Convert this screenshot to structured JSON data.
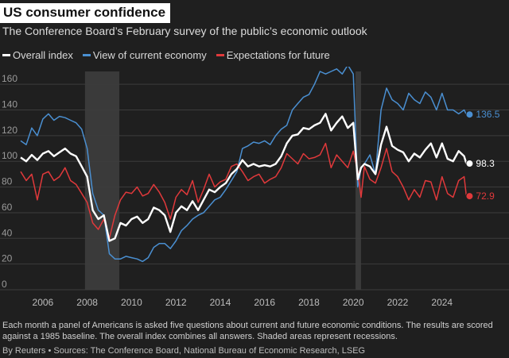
{
  "title": "US consumer confidence",
  "subtitle": "The Conference Board’s February survey of the public’s economic outlook",
  "legend": [
    {
      "label": "Overall index",
      "color": "#ffffff"
    },
    {
      "label": "View of current economy",
      "color": "#4a8fd1"
    },
    {
      "label": "Expectations for future",
      "color": "#e0393b"
    }
  ],
  "footnote": "Each month a panel of Americans is asked five questions about current and future economic conditions. The results are scored against a 1985 baseline. The overall index combines all answers. Shaded areas represent recessions.",
  "source": "By Reuters • Sources: The Conference Board, National Bureau of Economic Research, LSEG",
  "chart_data": {
    "type": "line",
    "title": "US consumer confidence",
    "xlabel": "",
    "ylabel": "",
    "xlim": [
      2005,
      2025.3
    ],
    "ylim": [
      0,
      170
    ],
    "yticks": [
      0,
      20,
      40,
      60,
      80,
      100,
      120,
      140,
      160
    ],
    "xticks": [
      2006,
      2008,
      2010,
      2012,
      2014,
      2016,
      2018,
      2020,
      2022,
      2024
    ],
    "grid": true,
    "legend_position": "top-left",
    "recessions": [
      [
        2007.9,
        2009.45
      ],
      [
        2020.1,
        2020.35
      ]
    ],
    "series": [
      {
        "name": "Overall index",
        "color": "#ffffff",
        "end_label": "98.3",
        "x": [
          2005.0,
          2005.25,
          2005.5,
          2005.75,
          2006.0,
          2006.25,
          2006.5,
          2006.75,
          2007.0,
          2007.25,
          2007.5,
          2007.75,
          2008.0,
          2008.25,
          2008.5,
          2008.75,
          2009.0,
          2009.25,
          2009.5,
          2009.75,
          2010.0,
          2010.25,
          2010.5,
          2010.75,
          2011.0,
          2011.25,
          2011.5,
          2011.75,
          2012.0,
          2012.25,
          2012.5,
          2012.75,
          2013.0,
          2013.25,
          2013.5,
          2013.75,
          2014.0,
          2014.25,
          2014.5,
          2014.75,
          2015.0,
          2015.25,
          2015.5,
          2015.75,
          2016.0,
          2016.25,
          2016.5,
          2016.75,
          2017.0,
          2017.25,
          2017.5,
          2017.75,
          2018.0,
          2018.25,
          2018.5,
          2018.75,
          2019.0,
          2019.25,
          2019.5,
          2019.75,
          2020.0,
          2020.2,
          2020.35,
          2020.5,
          2020.75,
          2021.0,
          2021.25,
          2021.5,
          2021.75,
          2022.0,
          2022.25,
          2022.5,
          2022.75,
          2023.0,
          2023.25,
          2023.5,
          2023.75,
          2024.0,
          2024.25,
          2024.5,
          2024.75,
          2025.0,
          2025.1
        ],
        "y": [
          103,
          100,
          105,
          101,
          106,
          108,
          104,
          107,
          110,
          106,
          104,
          96,
          88,
          62,
          55,
          58,
          38,
          40,
          52,
          50,
          55,
          57,
          52,
          55,
          64,
          62,
          58,
          45,
          60,
          65,
          62,
          69,
          62,
          70,
          78,
          76,
          80,
          83,
          90,
          94,
          101,
          96,
          98,
          96,
          97,
          96,
          98,
          104,
          114,
          120,
          121,
          126,
          125,
          128,
          130,
          137,
          124,
          130,
          135,
          126,
          130,
          86,
          95,
          98,
          96,
          90,
          113,
          127,
          112,
          109,
          107,
          100,
          106,
          103,
          109,
          114,
          103,
          114,
          102,
          100,
          108,
          104,
          98.3
        ]
      },
      {
        "name": "View of current economy",
        "color": "#4a8fd1",
        "end_label": "136.5",
        "x": [
          2005.0,
          2005.25,
          2005.5,
          2005.75,
          2006.0,
          2006.25,
          2006.5,
          2006.75,
          2007.0,
          2007.25,
          2007.5,
          2007.75,
          2008.0,
          2008.25,
          2008.5,
          2008.75,
          2009.0,
          2009.25,
          2009.5,
          2009.75,
          2010.0,
          2010.25,
          2010.5,
          2010.75,
          2011.0,
          2011.25,
          2011.5,
          2011.75,
          2012.0,
          2012.25,
          2012.5,
          2012.75,
          2013.0,
          2013.25,
          2013.5,
          2013.75,
          2014.0,
          2014.25,
          2014.5,
          2014.75,
          2015.0,
          2015.25,
          2015.5,
          2015.75,
          2016.0,
          2016.25,
          2016.5,
          2016.75,
          2017.0,
          2017.25,
          2017.5,
          2017.75,
          2018.0,
          2018.25,
          2018.5,
          2018.75,
          2019.0,
          2019.25,
          2019.5,
          2019.75,
          2020.0,
          2020.2,
          2020.35,
          2020.5,
          2020.75,
          2021.0,
          2021.25,
          2021.5,
          2021.75,
          2022.0,
          2022.25,
          2022.5,
          2022.75,
          2023.0,
          2023.25,
          2023.5,
          2023.75,
          2024.0,
          2024.25,
          2024.5,
          2024.75,
          2025.0,
          2025.1
        ],
        "y": [
          116,
          113,
          126,
          120,
          133,
          137,
          132,
          135,
          134,
          132,
          130,
          125,
          110,
          75,
          62,
          58,
          28,
          24,
          24,
          26,
          25,
          24,
          22,
          25,
          33,
          36,
          36,
          32,
          38,
          46,
          50,
          55,
          58,
          60,
          65,
          70,
          72,
          78,
          85,
          92,
          110,
          112,
          115,
          114,
          116,
          113,
          120,
          125,
          128,
          140,
          145,
          150,
          152,
          160,
          170,
          168,
          170,
          172,
          168,
          175,
          168,
          80,
          95,
          98,
          105,
          90,
          140,
          157,
          148,
          145,
          140,
          153,
          148,
          145,
          154,
          150,
          140,
          153,
          140,
          140,
          137,
          140,
          136.5
        ]
      },
      {
        "name": "Expectations for future",
        "color": "#e0393b",
        "end_label": "72.9",
        "x": [
          2005.0,
          2005.25,
          2005.5,
          2005.75,
          2006.0,
          2006.25,
          2006.5,
          2006.75,
          2007.0,
          2007.25,
          2007.5,
          2007.75,
          2008.0,
          2008.25,
          2008.5,
          2008.75,
          2009.0,
          2009.25,
          2009.5,
          2009.75,
          2010.0,
          2010.25,
          2010.5,
          2010.75,
          2011.0,
          2011.25,
          2011.5,
          2011.75,
          2012.0,
          2012.25,
          2012.5,
          2012.75,
          2013.0,
          2013.25,
          2013.5,
          2013.75,
          2014.0,
          2014.25,
          2014.5,
          2014.75,
          2015.0,
          2015.25,
          2015.5,
          2015.75,
          2016.0,
          2016.25,
          2016.5,
          2016.75,
          2017.0,
          2017.25,
          2017.5,
          2017.75,
          2018.0,
          2018.25,
          2018.5,
          2018.75,
          2019.0,
          2019.25,
          2019.5,
          2019.75,
          2020.0,
          2020.2,
          2020.35,
          2020.5,
          2020.75,
          2021.0,
          2021.25,
          2021.5,
          2021.75,
          2022.0,
          2022.25,
          2022.5,
          2022.75,
          2023.0,
          2023.25,
          2023.5,
          2023.75,
          2024.0,
          2024.25,
          2024.5,
          2024.75,
          2025.0,
          2025.1
        ],
        "y": [
          92,
          85,
          90,
          70,
          90,
          92,
          85,
          88,
          95,
          85,
          82,
          75,
          68,
          52,
          47,
          55,
          40,
          58,
          70,
          76,
          75,
          80,
          73,
          75,
          82,
          76,
          68,
          55,
          72,
          78,
          74,
          85,
          68,
          78,
          90,
          80,
          84,
          86,
          96,
          98,
          92,
          85,
          88,
          90,
          83,
          86,
          88,
          95,
          106,
          102,
          98,
          106,
          102,
          103,
          105,
          114,
          95,
          105,
          100,
          95,
          108,
          92,
          72,
          96,
          86,
          83,
          95,
          110,
          92,
          88,
          80,
          70,
          78,
          72,
          85,
          84,
          70,
          88,
          75,
          72,
          85,
          88,
          72.9
        ]
      }
    ]
  }
}
